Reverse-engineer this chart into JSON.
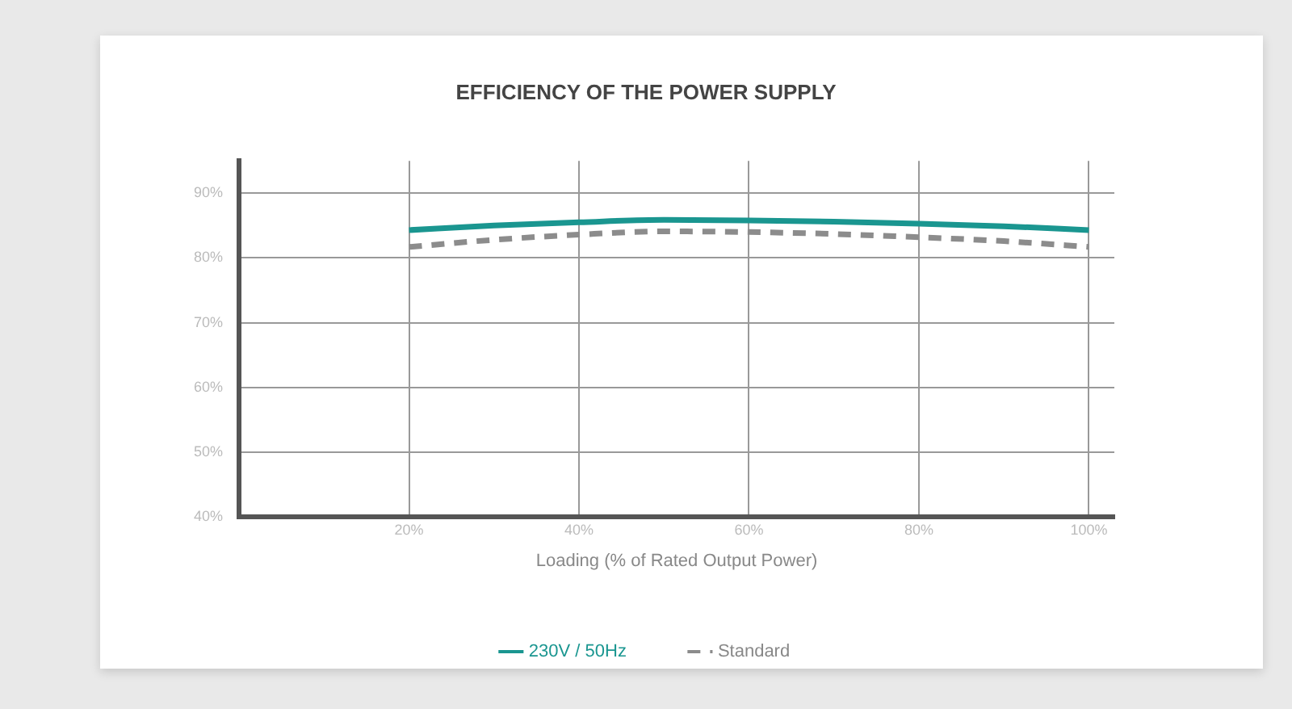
{
  "chart_data": {
    "type": "line",
    "title": "EFFICIENCY OF THE POWER SUPPLY",
    "xlabel": "Loading (% of Rated Output Power)",
    "x": [
      20,
      30,
      40,
      50,
      60,
      70,
      80,
      90,
      100
    ],
    "series": [
      {
        "name": "230V / 50Hz",
        "color": "#1a9690",
        "line_style": "solid",
        "values": [
          84.3,
          85.0,
          85.5,
          85.9,
          85.8,
          85.6,
          85.3,
          84.9,
          84.3
        ]
      },
      {
        "name": "Standard",
        "color": "#8c8c8c",
        "line_style": "dashed",
        "values": [
          81.7,
          82.8,
          83.6,
          84.1,
          84.0,
          83.7,
          83.2,
          82.6,
          81.7
        ]
      }
    ],
    "xlim": [
      0,
      103
    ],
    "xticks": [
      {
        "value": 20,
        "label": "20%"
      },
      {
        "value": 40,
        "label": "40%"
      },
      {
        "value": 60,
        "label": "60%"
      },
      {
        "value": 80,
        "label": "80%"
      },
      {
        "value": 100,
        "label": "100%"
      }
    ],
    "ylim": [
      40,
      95
    ],
    "yticks": [
      {
        "value": 40,
        "label": "40%"
      },
      {
        "value": 50,
        "label": "50%"
      },
      {
        "value": 60,
        "label": "60%"
      },
      {
        "value": 70,
        "label": "70%"
      },
      {
        "value": 80,
        "label": "80%"
      },
      {
        "value": 90,
        "label": "90%"
      }
    ],
    "grid": true,
    "legend": "bottom",
    "marker": "none"
  }
}
